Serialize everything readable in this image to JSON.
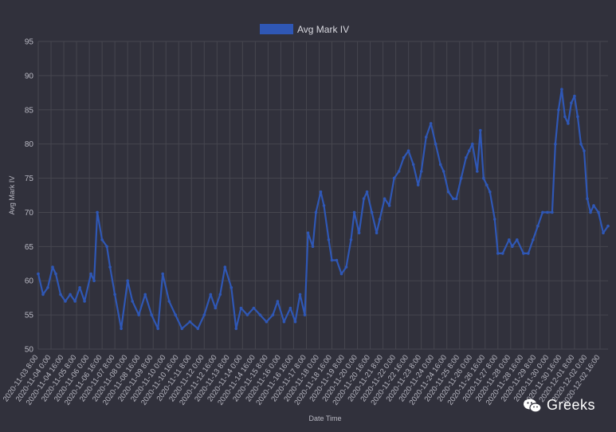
{
  "watermark": {
    "text": "Greeks",
    "icon": "wechat-icon"
  },
  "colors": {
    "background": "#31313c",
    "grid": "#46464f",
    "series": "#2f57b5"
  },
  "chart_data": {
    "type": "line",
    "legend": [
      "Avg Mark IV"
    ],
    "legend_position": "top-center",
    "xlabel": "Date Time",
    "ylabel": "Avg Mark IV",
    "ylim": [
      50,
      95
    ],
    "yticks": [
      50,
      55,
      60,
      65,
      70,
      75,
      80,
      85,
      90,
      95
    ],
    "grid": true,
    "xlim": [
      "2020-11-03 08:00",
      "2020-12-03 02:00"
    ],
    "xtick_labels": [
      "2020-11-03 8:00",
      "2020-11-04 0:00",
      "2020-11-04 16:00",
      "2020-11-05 8:00",
      "2020-11-06 0:00",
      "2020-11-06 16:00",
      "2020-11-07 8:00",
      "2020-11-08 0:00",
      "2020-11-08 16:00",
      "2020-11-09 8:00",
      "2020-11-10 0:00",
      "2020-11-10 16:00",
      "2020-11-11 8:00",
      "2020-11-12 0:00",
      "2020-11-12 16:00",
      "2020-11-13 8:00",
      "2020-11-14 0:00",
      "2020-11-14 16:00",
      "2020-11-15 8:00",
      "2020-11-16 0:00",
      "2020-11-16 16:00",
      "2020-11-17 8:00",
      "2020-11-18 0:00",
      "2020-11-18 16:00",
      "2020-11-19 8:00",
      "2020-11-20 0:00",
      "2020-11-20 16:00",
      "2020-11-21 8:00",
      "2020-11-22 0:00",
      "2020-11-22 16:00",
      "2020-11-23 8:00",
      "2020-11-24 0:00",
      "2020-11-24 16:00",
      "2020-11-25 8:00",
      "2020-11-26 0:00",
      "2020-11-26 16:00",
      "2020-11-27 8:00",
      "2020-11-28 0:00",
      "2020-11-28 16:00",
      "2020-11-29 8:00",
      "2020-11-30 0:00",
      "2020-11-30 16:00",
      "2020-12-01 8:00",
      "2020-12-02 0:00",
      "2020-12-02 16:00"
    ],
    "series": [
      {
        "name": "Avg Mark IV",
        "x": [
          "2020-11-03 08:00",
          "2020-11-03 14:00",
          "2020-11-03 20:00",
          "2020-11-04 02:00",
          "2020-11-04 06:00",
          "2020-11-04 12:00",
          "2020-11-04 18:00",
          "2020-11-05 00:00",
          "2020-11-05 06:00",
          "2020-11-05 12:00",
          "2020-11-05 18:00",
          "2020-11-06 02:00",
          "2020-11-06 06:00",
          "2020-11-06 10:00",
          "2020-11-06 16:00",
          "2020-11-06 22:00",
          "2020-11-07 02:00",
          "2020-11-07 08:00",
          "2020-11-07 16:00",
          "2020-11-08 00:00",
          "2020-11-08 06:00",
          "2020-11-08 14:00",
          "2020-11-08 22:00",
          "2020-11-09 06:00",
          "2020-11-09 14:00",
          "2020-11-09 20:00",
          "2020-11-10 04:00",
          "2020-11-10 12:00",
          "2020-11-10 20:00",
          "2020-11-11 06:00",
          "2020-11-11 16:00",
          "2020-11-12 00:00",
          "2020-11-12 08:00",
          "2020-11-12 14:00",
          "2020-11-12 20:00",
          "2020-11-13 02:00",
          "2020-11-13 10:00",
          "2020-11-13 16:00",
          "2020-11-13 22:00",
          "2020-11-14 06:00",
          "2020-11-14 14:00",
          "2020-11-14 22:00",
          "2020-11-15 06:00",
          "2020-11-15 14:00",
          "2020-11-15 20:00",
          "2020-11-16 04:00",
          "2020-11-16 12:00",
          "2020-11-16 18:00",
          "2020-11-17 00:00",
          "2020-11-17 06:00",
          "2020-11-17 10:00",
          "2020-11-17 16:00",
          "2020-11-17 20:00",
          "2020-11-18 02:00",
          "2020-11-18 06:00",
          "2020-11-18 12:00",
          "2020-11-18 16:00",
          "2020-11-18 22:00",
          "2020-11-19 04:00",
          "2020-11-19 10:00",
          "2020-11-19 16:00",
          "2020-11-19 20:00",
          "2020-11-20 02:00",
          "2020-11-20 08:00",
          "2020-11-20 12:00",
          "2020-11-20 18:00",
          "2020-11-21 00:00",
          "2020-11-21 04:00",
          "2020-11-21 10:00",
          "2020-11-21 16:00",
          "2020-11-21 22:00",
          "2020-11-22 04:00",
          "2020-11-22 10:00",
          "2020-11-22 16:00",
          "2020-11-22 22:00",
          "2020-11-23 04:00",
          "2020-11-23 08:00",
          "2020-11-23 14:00",
          "2020-11-23 20:00",
          "2020-11-24 02:00",
          "2020-11-24 08:00",
          "2020-11-24 12:00",
          "2020-11-24 18:00",
          "2020-11-25 00:00",
          "2020-11-25 04:00",
          "2020-11-25 10:00",
          "2020-11-25 16:00",
          "2020-11-25 20:00",
          "2020-11-26 00:00",
          "2020-11-26 06:00",
          "2020-11-26 10:00",
          "2020-11-26 14:00",
          "2020-11-26 18:00",
          "2020-11-26 22:00",
          "2020-11-27 04:00",
          "2020-11-27 08:00",
          "2020-11-27 14:00",
          "2020-11-27 22:00",
          "2020-11-28 02:00",
          "2020-11-28 08:00",
          "2020-11-28 16:00",
          "2020-11-28 22:00",
          "2020-11-29 04:00",
          "2020-11-29 10:00",
          "2020-11-29 16:00",
          "2020-11-29 22:00",
          "2020-11-30 04:00",
          "2020-11-30 08:00",
          "2020-11-30 12:00",
          "2020-11-30 16:00",
          "2020-11-30 20:00",
          "2020-12-01 00:00",
          "2020-12-01 04:00",
          "2020-12-01 08:00",
          "2020-12-01 12:00",
          "2020-12-01 16:00",
          "2020-12-01 20:00",
          "2020-12-02 00:00",
          "2020-12-02 04:00",
          "2020-12-02 08:00",
          "2020-12-02 14:00",
          "2020-12-02 20:00",
          "2020-12-03 02:00"
        ],
        "y": [
          61,
          58,
          59,
          62,
          61,
          58,
          57,
          58,
          57,
          59,
          57,
          61,
          60,
          70,
          66,
          65,
          62,
          58,
          53,
          60,
          57,
          55,
          58,
          55,
          53,
          61,
          57,
          55,
          53,
          54,
          53,
          55,
          58,
          56,
          58,
          62,
          59,
          53,
          56,
          55,
          56,
          55,
          54,
          55,
          57,
          54,
          56,
          54,
          58,
          55,
          67,
          65,
          70,
          73,
          71,
          66,
          63,
          63,
          61,
          62,
          66,
          70,
          67,
          72,
          73,
          70,
          67,
          69,
          72,
          71,
          75,
          76,
          78,
          79,
          77,
          74,
          76,
          81,
          83,
          80,
          77,
          76,
          73,
          72,
          72,
          75,
          78,
          79,
          80,
          76,
          82,
          75,
          74,
          73,
          69,
          64,
          64,
          66,
          65,
          66,
          64,
          64,
          66,
          68,
          70,
          70,
          70,
          80,
          85,
          88,
          84,
          83,
          86,
          87,
          84,
          80,
          79,
          72,
          70,
          71,
          70,
          67,
          68
        ]
      }
    ]
  }
}
